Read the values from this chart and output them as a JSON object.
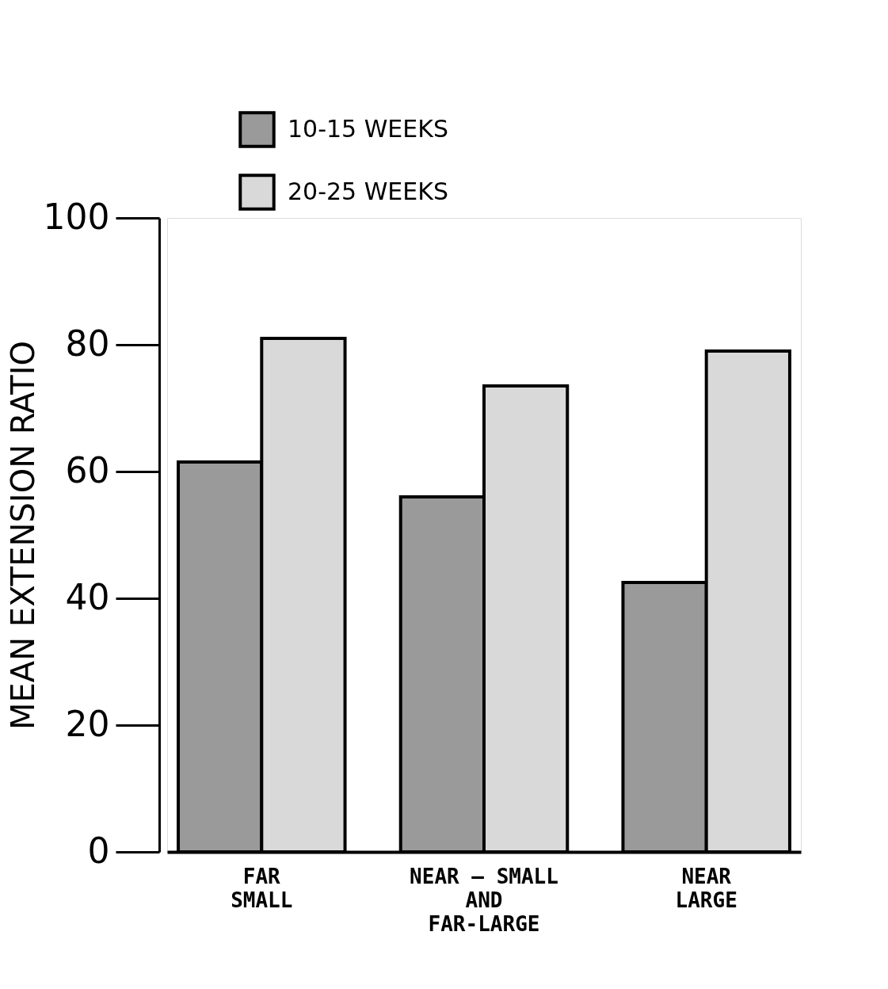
{
  "chart_data": {
    "type": "bar",
    "ylabel": "MEAN EXTENSION RATIO",
    "categories": [
      "FAR\nSMALL",
      "NEAR — SMALL\nAND\nFAR-LARGE",
      "NEAR\nLARGE"
    ],
    "series": [
      {
        "name": "10-15 WEEKS",
        "color": "#9a9a9a",
        "values": [
          61.5,
          56,
          42.5
        ]
      },
      {
        "name": "20-25 WEEKS",
        "color": "#d9d9d9",
        "values": [
          81,
          73.5,
          79
        ]
      }
    ],
    "ylim": [
      0,
      100
    ],
    "yticks": [
      0,
      20,
      40,
      60,
      80,
      100
    ],
    "grid": false,
    "legend": "top left"
  }
}
